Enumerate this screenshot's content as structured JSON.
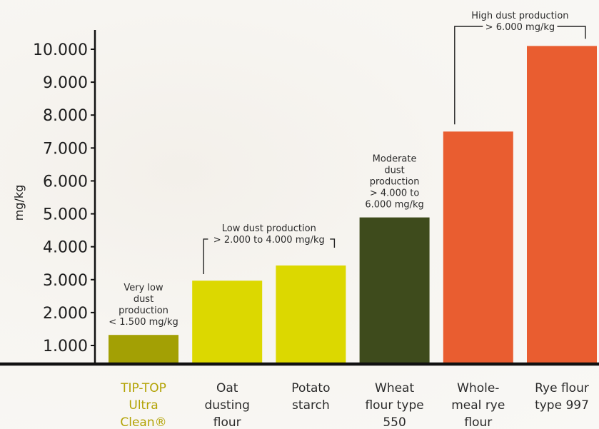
{
  "chart_data": {
    "type": "bar",
    "ylabel": "mg/kg",
    "ylim": [
      500,
      10500
    ],
    "yticks": [
      "1.000",
      "2.000",
      "3.000",
      "4.000",
      "5.000",
      "6.000",
      "7.000",
      "8.000",
      "9.000",
      "10.000"
    ],
    "ytick_values": [
      1000,
      2000,
      3000,
      4000,
      5000,
      6000,
      7000,
      8000,
      9000,
      10000
    ],
    "categories": [
      [
        "TIP-TOP",
        "Ultra",
        "Clean®"
      ],
      [
        "Oat",
        "dusting",
        "flour"
      ],
      [
        "Potato",
        "starch"
      ],
      [
        "Wheat",
        "flour type",
        "550"
      ],
      [
        "Whole-",
        "meal rye",
        "flour"
      ],
      [
        "Rye flour",
        "type 997"
      ]
    ],
    "values": [
      1320,
      2970,
      3430,
      4890,
      7500,
      10100
    ],
    "colors": [
      "#a3a004",
      "#dcd800",
      "#dcd800",
      "#3e4b1c",
      "#e95d30",
      "#e95d30"
    ],
    "highlight_color": "#b2a203",
    "groups": [
      {
        "lines": [
          "Very low",
          "dust",
          "production",
          "< 1.500 mg/kg"
        ],
        "bars": [
          0
        ]
      },
      {
        "lines": [
          "Low dust production",
          "> 2.000 to 4.000 mg/kg"
        ],
        "bars": [
          1,
          2
        ]
      },
      {
        "lines": [
          "Moderate",
          "dust",
          "production",
          "> 4.000 to",
          "6.000 mg/kg"
        ],
        "bars": [
          3
        ]
      },
      {
        "lines": [
          "High dust production",
          "> 6.000 mg/kg"
        ],
        "bars": [
          4,
          5
        ]
      }
    ]
  }
}
